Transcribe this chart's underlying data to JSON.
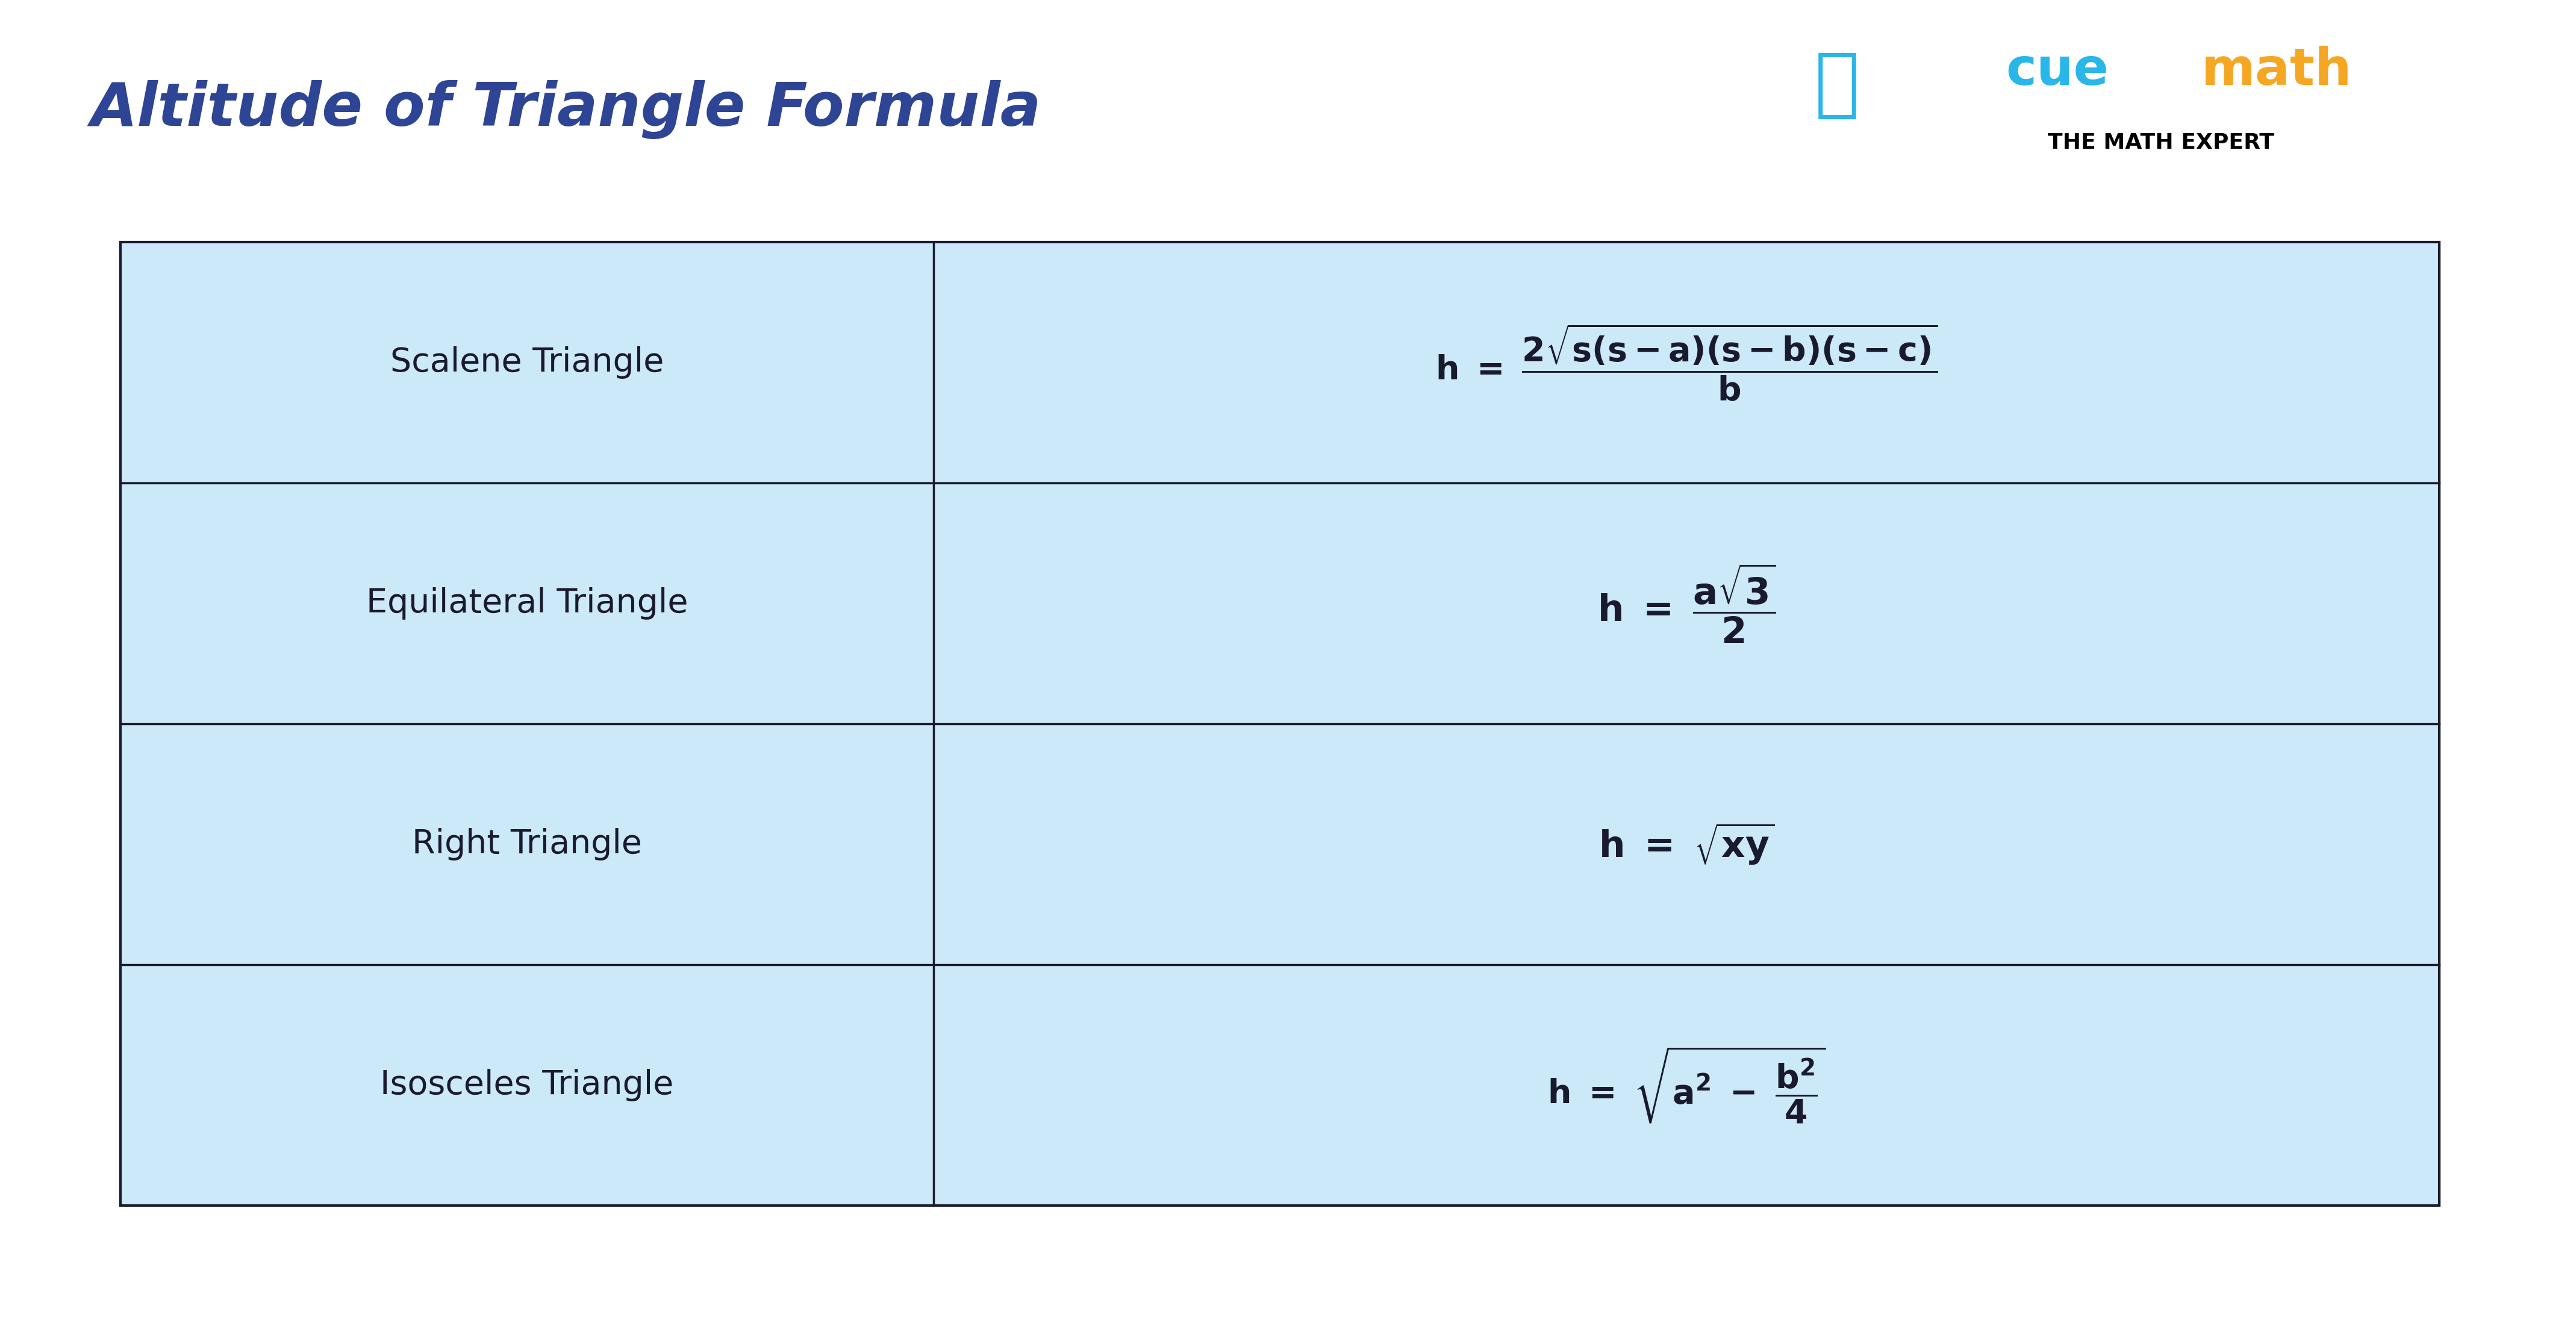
{
  "title": "Altitude of Triangle Formula",
  "title_color": "#2e4494",
  "title_fontsize": 72,
  "bg_color": "#ffffff",
  "table_bg_color": "#cce9f9",
  "table_border_color": "#1a1a2e",
  "rows": [
    {
      "label": "Scalene Triangle",
      "formula_parts": "scalene"
    },
    {
      "label": "Equilateral Triangle",
      "formula_parts": "equilateral"
    },
    {
      "label": "Right Triangle",
      "formula_parts": "right"
    },
    {
      "label": "Isosceles Triangle",
      "formula_parts": "isosceles"
    }
  ],
  "cuemath_cyan": "#29b6e8",
  "cuemath_orange": "#f5a623",
  "cuemath_black": "#000000",
  "label_fontsize": 40,
  "formula_fontsize": 44,
  "label_color": "#1a1a2e",
  "formula_color": "#1a1a2e"
}
